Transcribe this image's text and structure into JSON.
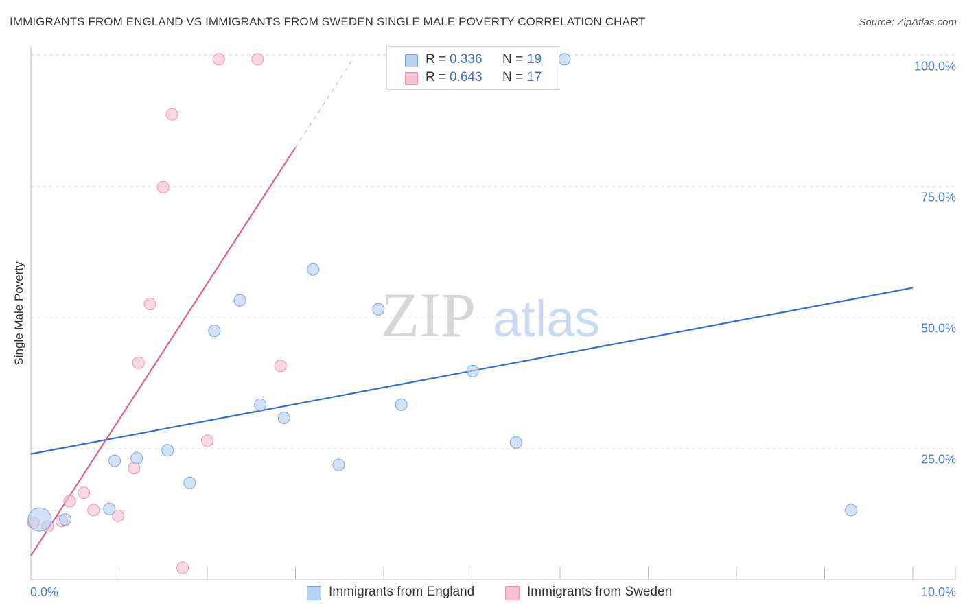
{
  "title": "IMMIGRANTS FROM ENGLAND VS IMMIGRANTS FROM SWEDEN SINGLE MALE POVERTY CORRELATION CHART",
  "source": "Source: ZipAtlas.com",
  "watermark": {
    "zip": "ZIP",
    "atlas": "atlas"
  },
  "colors": {
    "england_fill": "#b9d3f3",
    "england_stroke": "#7aa5e0",
    "england_line": "#2f6fcf",
    "sweden_fill": "#f7c3d2",
    "sweden_stroke": "#ee94b0",
    "sweden_line": "#e0608c",
    "axis_label": "#4a7fd0",
    "grid": "#dcdcdc"
  },
  "legend": {
    "england": {
      "r_label": "R =",
      "r_value": "0.336",
      "n_label": "N =",
      "n_value": "19"
    },
    "sweden": {
      "r_label": "R =",
      "r_value": "0.643",
      "n_label": "N =",
      "n_value": "17"
    }
  },
  "bottom_legend": {
    "england": "Immigrants from England",
    "sweden": "Immigrants from Sweden"
  },
  "chart_data": {
    "type": "scatter",
    "title": "IMMIGRANTS FROM ENGLAND VS IMMIGRANTS FROM SWEDEN SINGLE MALE POVERTY CORRELATION CHART",
    "xlabel": "",
    "ylabel": "Single Male Poverty",
    "xlim": [
      0,
      10
    ],
    "ylim": [
      0,
      102
    ],
    "x_tick_labels": [
      "0.0%",
      "10.0%"
    ],
    "y_ticks": [
      25,
      50,
      75,
      100
    ],
    "y_tick_labels": [
      "25.0%",
      "50.0%",
      "75.0%",
      "100.0%"
    ],
    "grid": true,
    "series": [
      {
        "name": "Immigrants from England",
        "points": [
          {
            "x": 0.1,
            "y": 11.5,
            "size": "large"
          },
          {
            "x": 0.39,
            "y": 11.5
          },
          {
            "x": 0.89,
            "y": 13.5
          },
          {
            "x": 0.95,
            "y": 22.7
          },
          {
            "x": 1.2,
            "y": 23.2
          },
          {
            "x": 1.55,
            "y": 24.7
          },
          {
            "x": 1.8,
            "y": 18.5
          },
          {
            "x": 2.08,
            "y": 47.5
          },
          {
            "x": 2.37,
            "y": 53.3
          },
          {
            "x": 2.6,
            "y": 33.4
          },
          {
            "x": 2.87,
            "y": 30.9
          },
          {
            "x": 3.2,
            "y": 59.2
          },
          {
            "x": 3.49,
            "y": 21.9
          },
          {
            "x": 3.94,
            "y": 51.6
          },
          {
            "x": 4.2,
            "y": 33.4
          },
          {
            "x": 5.01,
            "y": 39.8
          },
          {
            "x": 5.5,
            "y": 26.2
          },
          {
            "x": 6.05,
            "y": 99.3
          },
          {
            "x": 9.3,
            "y": 13.3
          }
        ],
        "trendline": {
          "x": [
            0,
            10
          ],
          "y": [
            24.0,
            55.7
          ]
        }
      },
      {
        "name": "Immigrants from Sweden",
        "points": [
          {
            "x": 0.03,
            "y": 10.9
          },
          {
            "x": 0.19,
            "y": 10.2
          },
          {
            "x": 0.35,
            "y": 11.2
          },
          {
            "x": 0.44,
            "y": 15.0
          },
          {
            "x": 0.6,
            "y": 16.6
          },
          {
            "x": 0.71,
            "y": 13.3
          },
          {
            "x": 0.99,
            "y": 12.2
          },
          {
            "x": 1.17,
            "y": 21.3
          },
          {
            "x": 1.22,
            "y": 41.4
          },
          {
            "x": 1.35,
            "y": 52.6
          },
          {
            "x": 1.5,
            "y": 74.9
          },
          {
            "x": 1.6,
            "y": 88.8
          },
          {
            "x": 1.72,
            "y": 2.3
          },
          {
            "x": 2.0,
            "y": 26.5
          },
          {
            "x": 2.13,
            "y": 99.3
          },
          {
            "x": 2.57,
            "y": 99.3
          },
          {
            "x": 2.83,
            "y": 40.8
          }
        ],
        "trendline": {
          "x": [
            0,
            3.0
          ],
          "y": [
            4.6,
            82.5
          ],
          "dashed_extension": {
            "x": [
              3.0,
              3.65
            ],
            "y": [
              82.5,
              99.3
            ]
          }
        }
      }
    ]
  }
}
